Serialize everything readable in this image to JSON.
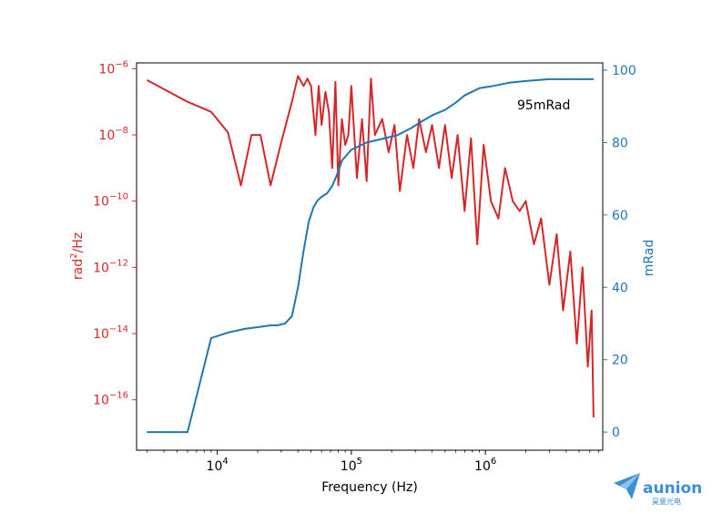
{
  "chart_data": {
    "type": "line",
    "xlabel": "Frequency (Hz)",
    "x_scale": "log",
    "xlim": [
      2500,
      7500000
    ],
    "x_ticks": [
      {
        "value": 10000,
        "base": "10",
        "exp": "4"
      },
      {
        "value": 100000,
        "base": "10",
        "exp": "5"
      },
      {
        "value": 1000000,
        "base": "10",
        "exp": "6"
      }
    ],
    "y_left": {
      "label_main": "rad",
      "label_sup": "2",
      "label_tail": "/Hz",
      "scale": "log",
      "ylim": [
        3e-18,
        1.5e-06
      ],
      "color": "#d62728",
      "ticks": [
        {
          "value": 1e-06,
          "base": "10",
          "exp": "−6"
        },
        {
          "value": 1e-08,
          "base": "10",
          "exp": "−8"
        },
        {
          "value": 1e-10,
          "base": "10",
          "exp": "−10"
        },
        {
          "value": 1e-12,
          "base": "10",
          "exp": "−12"
        },
        {
          "value": 1e-14,
          "base": "10",
          "exp": "−14"
        },
        {
          "value": 1e-16,
          "base": "10",
          "exp": "−16"
        }
      ]
    },
    "y_right": {
      "label": "mRad",
      "scale": "linear",
      "ylim": [
        -5,
        102
      ],
      "color": "#1f77b4",
      "ticks": [
        "0",
        "20",
        "40",
        "60",
        "80",
        "100"
      ]
    },
    "annotation": "95mRad",
    "series": [
      {
        "axis": "left",
        "color": "#d62728",
        "x": [
          3000,
          6000,
          9000,
          12000,
          15000,
          18000,
          21000,
          25000,
          30000,
          36000,
          40000,
          44000,
          47000,
          50000,
          54000,
          57000,
          60000,
          64000,
          68000,
          72000,
          76000,
          80000,
          85000,
          90000,
          95000,
          100000,
          110000,
          120000,
          130000,
          140000,
          150000,
          170000,
          190000,
          210000,
          230000,
          260000,
          290000,
          320000,
          360000,
          400000,
          450000,
          500000,
          560000,
          620000,
          700000,
          780000,
          870000,
          970000,
          1100000,
          1250000,
          1400000,
          1600000,
          1800000,
          2000000,
          2300000,
          2600000,
          3000000,
          3400000,
          3800000,
          4300000,
          4800000,
          5300000,
          5800000,
          6200000,
          6400000
        ],
        "y": [
          4.5e-07,
          1e-07,
          5e-08,
          1.2e-08,
          3e-10,
          1e-08,
          1e-08,
          3e-10,
          6e-09,
          1e-07,
          6e-07,
          3e-07,
          5e-07,
          3e-07,
          1e-08,
          3e-07,
          2e-08,
          2e-07,
          5e-08,
          1e-09,
          4e-07,
          3e-10,
          3e-08,
          5e-09,
          1e-08,
          3e-07,
          5e-10,
          3e-08,
          4e-10,
          5e-07,
          1e-08,
          3e-08,
          3e-09,
          2e-08,
          2e-10,
          1e-08,
          1e-09,
          3e-08,
          3e-09,
          2e-08,
          1e-09,
          2e-08,
          5e-10,
          1e-08,
          5e-11,
          8e-09,
          5e-12,
          5e-09,
          1e-10,
          3e-11,
          1e-09,
          1e-10,
          5e-11,
          1e-10,
          5e-12,
          3e-11,
          3e-13,
          1e-11,
          5e-14,
          3e-12,
          5e-15,
          1e-12,
          1e-15,
          5e-14,
          3e-17
        ]
      },
      {
        "axis": "right",
        "color": "#1f77b4",
        "x": [
          3000,
          6000,
          9000,
          12000,
          16000,
          20000,
          25000,
          28000,
          32000,
          36000,
          40000,
          44000,
          48000,
          52000,
          56000,
          60000,
          66000,
          72000,
          80000,
          85000,
          100000,
          130000,
          170000,
          220000,
          280000,
          340000,
          400000,
          500000,
          600000,
          700000,
          900000,
          1100000,
          1500000,
          2000000,
          3000000,
          4000000,
          5000000,
          6400000
        ],
        "y": [
          0,
          0,
          26,
          27.5,
          28.5,
          29,
          29.5,
          29.5,
          30,
          32,
          40,
          50,
          58,
          62,
          64,
          65,
          66,
          68,
          72,
          75,
          78,
          80,
          81,
          82,
          84,
          86,
          87.5,
          89,
          91,
          93,
          95,
          95.5,
          96.5,
          97,
          97.5,
          97.5,
          97.5,
          97.5
        ]
      }
    ]
  },
  "branding": {
    "logo_text": "aunion",
    "logo_subtext": "昊量光电",
    "logo_color": "#3b8fd9"
  }
}
